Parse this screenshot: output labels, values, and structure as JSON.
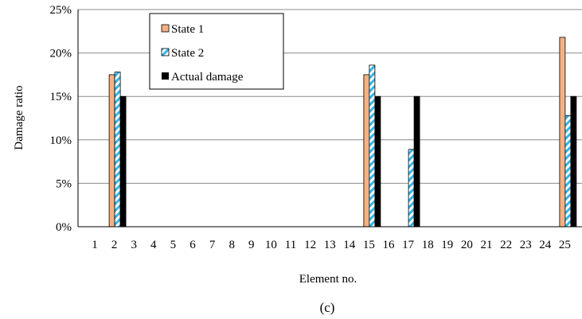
{
  "chart_data": {
    "type": "bar",
    "title": "",
    "caption": "(c)",
    "xlabel": "Element no.",
    "ylabel": "Damage ratio",
    "ylim": [
      0,
      0.25
    ],
    "yticks": [
      "0%",
      "5%",
      "10%",
      "15%",
      "20%",
      "25%"
    ],
    "categories": [
      "1",
      "2",
      "3",
      "4",
      "5",
      "6",
      "7",
      "8",
      "9",
      "10",
      "11",
      "12",
      "13",
      "14",
      "15",
      "16",
      "17",
      "18",
      "19",
      "20",
      "21",
      "22",
      "23",
      "24",
      "25"
    ],
    "grid": "horizontal",
    "legend_position": "top-left",
    "series": [
      {
        "name": "State 1",
        "color": "#f4b183",
        "pattern": "solid",
        "values": [
          0,
          0.175,
          0,
          0,
          0,
          0,
          0,
          0,
          0,
          0,
          0,
          0,
          0,
          0,
          0.175,
          0,
          0,
          0,
          0,
          0,
          0,
          0,
          0,
          0,
          0.218
        ]
      },
      {
        "name": "State 2",
        "color": "#33b5e8",
        "pattern": "diagonal-hatch",
        "values": [
          0,
          0.178,
          0,
          0,
          0,
          0,
          0,
          0,
          0,
          0,
          0,
          0,
          0,
          0,
          0.186,
          0,
          0.089,
          0,
          0,
          0,
          0,
          0,
          0,
          0,
          0.128
        ]
      },
      {
        "name": "Actual damage",
        "color": "#000000",
        "pattern": "solid",
        "values": [
          0,
          0.15,
          0,
          0,
          0,
          0,
          0,
          0,
          0,
          0,
          0,
          0,
          0,
          0,
          0.15,
          0,
          0.15,
          0,
          0,
          0,
          0,
          0,
          0,
          0,
          0.15
        ]
      }
    ]
  }
}
